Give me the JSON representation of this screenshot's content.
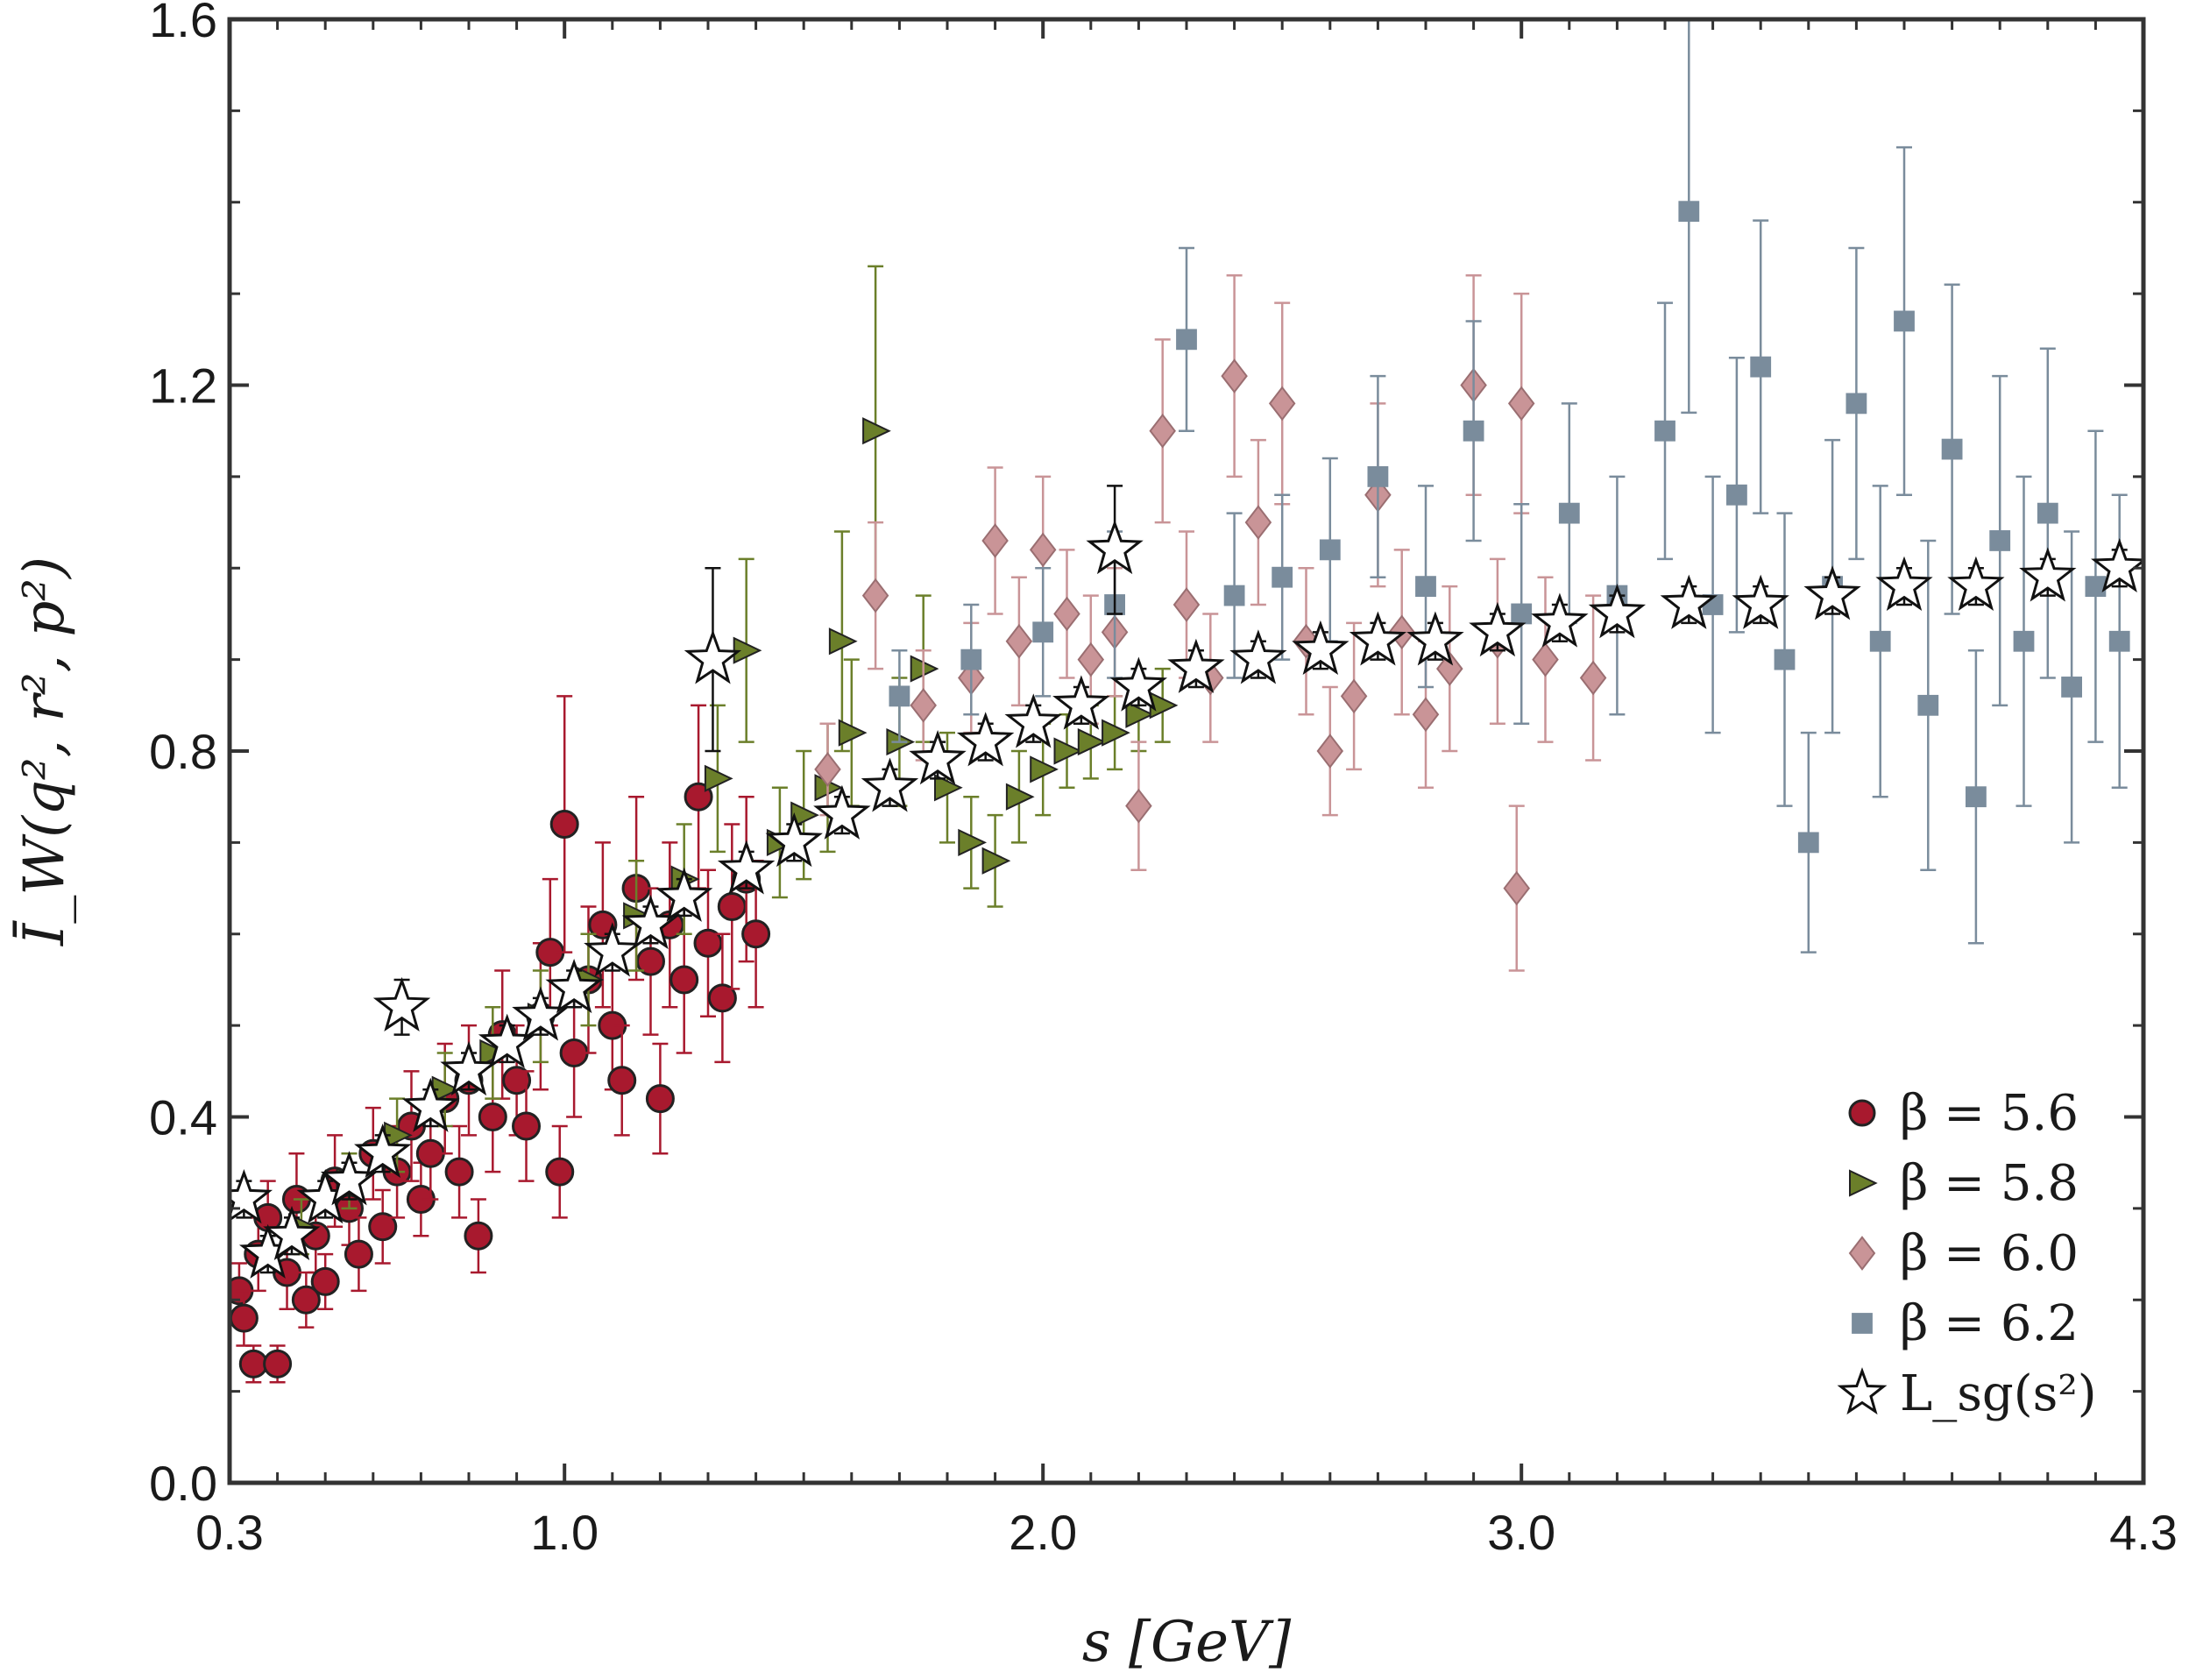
{
  "chart_data": {
    "type": "scatter",
    "title": "",
    "xlabel": "s [GeV]",
    "ylabel": "Ī_W(q², r², p²)",
    "xlim": [
      0.3,
      4.3
    ],
    "ylim": [
      0.0,
      1.6
    ],
    "x_ticks": [
      {
        "value": 0.3,
        "label": "0.3"
      },
      {
        "value": 1.0,
        "label": "1.0"
      },
      {
        "value": 2.0,
        "label": "2.0"
      },
      {
        "value": 3.0,
        "label": "3.0"
      },
      {
        "value": 4.3,
        "label": "4.3"
      }
    ],
    "y_ticks": [
      {
        "value": 0.0,
        "label": "0.0"
      },
      {
        "value": 0.4,
        "label": "0.4"
      },
      {
        "value": 0.8,
        "label": "0.8"
      },
      {
        "value": 1.2,
        "label": "1.2"
      },
      {
        "value": 1.6,
        "label": "1.6"
      }
    ],
    "grid": false,
    "legend_position": "bottom-right",
    "colors": {
      "beta56": "#a8192e",
      "beta58": "#6b7f2a",
      "beta60": "#c99497",
      "beta62": "#7a8c9c",
      "star": "#ffffff",
      "axis": "#333333"
    },
    "series": [
      {
        "name": "β = 5.6",
        "legend_label": "β = 5.6",
        "marker": "circle",
        "color_key": "beta56",
        "points": [
          {
            "x": 0.32,
            "y": 0.21,
            "err": 0.03
          },
          {
            "x": 0.33,
            "y": 0.18,
            "err": 0.03
          },
          {
            "x": 0.35,
            "y": 0.13,
            "err": 0.02
          },
          {
            "x": 0.36,
            "y": 0.25,
            "err": 0.04
          },
          {
            "x": 0.38,
            "y": 0.29,
            "err": 0.04
          },
          {
            "x": 0.4,
            "y": 0.13,
            "err": 0.02
          },
          {
            "x": 0.42,
            "y": 0.23,
            "err": 0.04
          },
          {
            "x": 0.44,
            "y": 0.31,
            "err": 0.05
          },
          {
            "x": 0.46,
            "y": 0.2,
            "err": 0.03
          },
          {
            "x": 0.48,
            "y": 0.27,
            "err": 0.04
          },
          {
            "x": 0.5,
            "y": 0.22,
            "err": 0.03
          },
          {
            "x": 0.52,
            "y": 0.33,
            "err": 0.05
          },
          {
            "x": 0.55,
            "y": 0.3,
            "err": 0.04
          },
          {
            "x": 0.57,
            "y": 0.25,
            "err": 0.04
          },
          {
            "x": 0.6,
            "y": 0.36,
            "err": 0.05
          },
          {
            "x": 0.62,
            "y": 0.28,
            "err": 0.04
          },
          {
            "x": 0.65,
            "y": 0.34,
            "err": 0.05
          },
          {
            "x": 0.68,
            "y": 0.39,
            "err": 0.06
          },
          {
            "x": 0.7,
            "y": 0.31,
            "err": 0.04
          },
          {
            "x": 0.72,
            "y": 0.36,
            "err": 0.05
          },
          {
            "x": 0.75,
            "y": 0.42,
            "err": 0.06
          },
          {
            "x": 0.78,
            "y": 0.34,
            "err": 0.05
          },
          {
            "x": 0.8,
            "y": 0.44,
            "err": 0.06
          },
          {
            "x": 0.82,
            "y": 0.27,
            "err": 0.04
          },
          {
            "x": 0.85,
            "y": 0.4,
            "err": 0.06
          },
          {
            "x": 0.87,
            "y": 0.49,
            "err": 0.07
          },
          {
            "x": 0.9,
            "y": 0.44,
            "err": 0.06
          },
          {
            "x": 0.92,
            "y": 0.39,
            "err": 0.06
          },
          {
            "x": 0.95,
            "y": 0.51,
            "err": 0.08
          },
          {
            "x": 0.97,
            "y": 0.58,
            "err": 0.08
          },
          {
            "x": 0.99,
            "y": 0.34,
            "err": 0.05
          },
          {
            "x": 1.0,
            "y": 0.72,
            "err": 0.14
          },
          {
            "x": 1.02,
            "y": 0.47,
            "err": 0.07
          },
          {
            "x": 1.05,
            "y": 0.55,
            "err": 0.08
          },
          {
            "x": 1.08,
            "y": 0.61,
            "err": 0.09
          },
          {
            "x": 1.1,
            "y": 0.5,
            "err": 0.07
          },
          {
            "x": 1.12,
            "y": 0.44,
            "err": 0.06
          },
          {
            "x": 1.15,
            "y": 0.65,
            "err": 0.1
          },
          {
            "x": 1.18,
            "y": 0.57,
            "err": 0.08
          },
          {
            "x": 1.2,
            "y": 0.42,
            "err": 0.06
          },
          {
            "x": 1.22,
            "y": 0.61,
            "err": 0.09
          },
          {
            "x": 1.25,
            "y": 0.55,
            "err": 0.08
          },
          {
            "x": 1.28,
            "y": 0.75,
            "err": 0.1
          },
          {
            "x": 1.3,
            "y": 0.59,
            "err": 0.08
          },
          {
            "x": 1.33,
            "y": 0.53,
            "err": 0.07
          },
          {
            "x": 1.35,
            "y": 0.63,
            "err": 0.09
          },
          {
            "x": 1.38,
            "y": 0.66,
            "err": 0.09
          },
          {
            "x": 1.4,
            "y": 0.6,
            "err": 0.08
          }
        ]
      },
      {
        "name": "β = 5.8",
        "legend_label": "β = 5.8",
        "marker": "triangle-right",
        "color_key": "beta58",
        "points": [
          {
            "x": 0.45,
            "y": 0.28,
            "err": 0.03
          },
          {
            "x": 0.55,
            "y": 0.33,
            "err": 0.03
          },
          {
            "x": 0.65,
            "y": 0.38,
            "err": 0.04
          },
          {
            "x": 0.75,
            "y": 0.43,
            "err": 0.04
          },
          {
            "x": 0.85,
            "y": 0.47,
            "err": 0.05
          },
          {
            "x": 0.95,
            "y": 0.51,
            "err": 0.05
          },
          {
            "x": 1.05,
            "y": 0.55,
            "err": 0.05
          },
          {
            "x": 1.15,
            "y": 0.62,
            "err": 0.06
          },
          {
            "x": 1.25,
            "y": 0.66,
            "err": 0.06
          },
          {
            "x": 1.32,
            "y": 0.77,
            "err": 0.08
          },
          {
            "x": 1.38,
            "y": 0.91,
            "err": 0.1
          },
          {
            "x": 1.45,
            "y": 0.7,
            "err": 0.06
          },
          {
            "x": 1.5,
            "y": 0.73,
            "err": 0.07
          },
          {
            "x": 1.55,
            "y": 0.76,
            "err": 0.07
          },
          {
            "x": 1.58,
            "y": 0.92,
            "err": 0.12
          },
          {
            "x": 1.6,
            "y": 0.82,
            "err": 0.08
          },
          {
            "x": 1.65,
            "y": 1.15,
            "err": 0.18
          },
          {
            "x": 1.7,
            "y": 0.81,
            "err": 0.07
          },
          {
            "x": 1.75,
            "y": 0.89,
            "err": 0.08
          },
          {
            "x": 1.8,
            "y": 0.76,
            "err": 0.06
          },
          {
            "x": 1.85,
            "y": 0.7,
            "err": 0.05
          },
          {
            "x": 1.9,
            "y": 0.68,
            "err": 0.05
          },
          {
            "x": 1.95,
            "y": 0.75,
            "err": 0.05
          },
          {
            "x": 2.0,
            "y": 0.78,
            "err": 0.05
          },
          {
            "x": 2.05,
            "y": 0.8,
            "err": 0.04
          },
          {
            "x": 2.1,
            "y": 0.81,
            "err": 0.04
          },
          {
            "x": 2.15,
            "y": 0.82,
            "err": 0.04
          },
          {
            "x": 2.2,
            "y": 0.84,
            "err": 0.04
          },
          {
            "x": 2.25,
            "y": 0.85,
            "err": 0.04
          }
        ]
      },
      {
        "name": "β = 6.0",
        "legend_label": "β = 6.0",
        "marker": "diamond",
        "color_key": "beta60",
        "points": [
          {
            "x": 1.55,
            "y": 0.78,
            "err": 0.05
          },
          {
            "x": 1.65,
            "y": 0.97,
            "err": 0.08
          },
          {
            "x": 1.75,
            "y": 0.85,
            "err": 0.06
          },
          {
            "x": 1.85,
            "y": 0.88,
            "err": 0.06
          },
          {
            "x": 1.9,
            "y": 1.03,
            "err": 0.08
          },
          {
            "x": 1.95,
            "y": 0.92,
            "err": 0.07
          },
          {
            "x": 2.0,
            "y": 1.02,
            "err": 0.08
          },
          {
            "x": 2.05,
            "y": 0.95,
            "err": 0.07
          },
          {
            "x": 2.1,
            "y": 0.9,
            "err": 0.07
          },
          {
            "x": 2.15,
            "y": 0.93,
            "err": 0.07
          },
          {
            "x": 2.2,
            "y": 0.74,
            "err": 0.07
          },
          {
            "x": 2.25,
            "y": 1.15,
            "err": 0.1
          },
          {
            "x": 2.3,
            "y": 0.96,
            "err": 0.08
          },
          {
            "x": 2.35,
            "y": 0.88,
            "err": 0.07
          },
          {
            "x": 2.4,
            "y": 1.21,
            "err": 0.11
          },
          {
            "x": 2.45,
            "y": 1.05,
            "err": 0.09
          },
          {
            "x": 2.5,
            "y": 1.18,
            "err": 0.11
          },
          {
            "x": 2.55,
            "y": 0.92,
            "err": 0.08
          },
          {
            "x": 2.6,
            "y": 0.8,
            "err": 0.07
          },
          {
            "x": 2.65,
            "y": 0.86,
            "err": 0.08
          },
          {
            "x": 2.7,
            "y": 1.08,
            "err": 0.1
          },
          {
            "x": 2.75,
            "y": 0.93,
            "err": 0.09
          },
          {
            "x": 2.8,
            "y": 0.84,
            "err": 0.08
          },
          {
            "x": 2.85,
            "y": 0.89,
            "err": 0.09
          },
          {
            "x": 2.9,
            "y": 1.2,
            "err": 0.12
          },
          {
            "x": 2.95,
            "y": 0.92,
            "err": 0.09
          },
          {
            "x": 3.0,
            "y": 1.18,
            "err": 0.12
          },
          {
            "x": 2.99,
            "y": 0.65,
            "err": 0.09
          },
          {
            "x": 3.05,
            "y": 0.9,
            "err": 0.09
          },
          {
            "x": 3.15,
            "y": 0.88,
            "err": 0.09
          }
        ]
      },
      {
        "name": "β = 6.2",
        "legend_label": "β = 6.2",
        "marker": "square",
        "color_key": "beta62",
        "points": [
          {
            "x": 1.7,
            "y": 0.86,
            "err": 0.05
          },
          {
            "x": 1.85,
            "y": 0.9,
            "err": 0.06
          },
          {
            "x": 2.0,
            "y": 0.93,
            "err": 0.07
          },
          {
            "x": 2.15,
            "y": 0.96,
            "err": 0.08
          },
          {
            "x": 2.3,
            "y": 1.25,
            "err": 0.1
          },
          {
            "x": 2.4,
            "y": 0.97,
            "err": 0.09
          },
          {
            "x": 2.5,
            "y": 0.99,
            "err": 0.09
          },
          {
            "x": 2.6,
            "y": 1.02,
            "err": 0.1
          },
          {
            "x": 2.7,
            "y": 1.1,
            "err": 0.11
          },
          {
            "x": 2.8,
            "y": 0.98,
            "err": 0.11
          },
          {
            "x": 2.9,
            "y": 1.15,
            "err": 0.12
          },
          {
            "x": 3.0,
            "y": 0.95,
            "err": 0.12
          },
          {
            "x": 3.1,
            "y": 1.06,
            "err": 0.12
          },
          {
            "x": 3.2,
            "y": 0.97,
            "err": 0.13
          },
          {
            "x": 3.3,
            "y": 1.15,
            "err": 0.14
          },
          {
            "x": 3.35,
            "y": 1.39,
            "err": 0.22
          },
          {
            "x": 3.4,
            "y": 0.96,
            "err": 0.14
          },
          {
            "x": 3.45,
            "y": 1.08,
            "err": 0.15
          },
          {
            "x": 3.5,
            "y": 1.22,
            "err": 0.16
          },
          {
            "x": 3.55,
            "y": 0.9,
            "err": 0.16
          },
          {
            "x": 3.6,
            "y": 0.7,
            "err": 0.12
          },
          {
            "x": 3.65,
            "y": 0.98,
            "err": 0.16
          },
          {
            "x": 3.7,
            "y": 1.18,
            "err": 0.17
          },
          {
            "x": 3.75,
            "y": 0.92,
            "err": 0.17
          },
          {
            "x": 3.8,
            "y": 1.27,
            "err": 0.19
          },
          {
            "x": 3.85,
            "y": 0.85,
            "err": 0.18
          },
          {
            "x": 3.9,
            "y": 1.13,
            "err": 0.18
          },
          {
            "x": 3.95,
            "y": 0.75,
            "err": 0.16
          },
          {
            "x": 4.0,
            "y": 1.03,
            "err": 0.18
          },
          {
            "x": 4.05,
            "y": 0.92,
            "err": 0.18
          },
          {
            "x": 4.1,
            "y": 1.06,
            "err": 0.18
          },
          {
            "x": 4.15,
            "y": 0.87,
            "err": 0.17
          },
          {
            "x": 4.2,
            "y": 0.98,
            "err": 0.17
          },
          {
            "x": 4.25,
            "y": 0.92,
            "err": 0.16
          }
        ]
      },
      {
        "name": "L_sg(s²)",
        "legend_label": "L_sg(s²)",
        "marker": "star",
        "color_key": "star",
        "points": [
          {
            "x": 0.33,
            "y": 0.31,
            "err": 0.02
          },
          {
            "x": 0.38,
            "y": 0.25,
            "err": 0.02
          },
          {
            "x": 0.43,
            "y": 0.27,
            "err": 0.02
          },
          {
            "x": 0.5,
            "y": 0.31,
            "err": 0.02
          },
          {
            "x": 0.55,
            "y": 0.33,
            "err": 0.02
          },
          {
            "x": 0.62,
            "y": 0.36,
            "err": 0.02
          },
          {
            "x": 0.66,
            "y": 0.52,
            "err": 0.03
          },
          {
            "x": 0.72,
            "y": 0.41,
            "err": 0.02
          },
          {
            "x": 0.8,
            "y": 0.45,
            "err": 0.02
          },
          {
            "x": 0.88,
            "y": 0.48,
            "err": 0.02
          },
          {
            "x": 0.95,
            "y": 0.51,
            "err": 0.02
          },
          {
            "x": 1.02,
            "y": 0.54,
            "err": 0.02
          },
          {
            "x": 1.1,
            "y": 0.58,
            "err": 0.02
          },
          {
            "x": 1.18,
            "y": 0.61,
            "err": 0.02
          },
          {
            "x": 1.25,
            "y": 0.64,
            "err": 0.02
          },
          {
            "x": 1.31,
            "y": 0.9,
            "err": 0.1
          },
          {
            "x": 1.38,
            "y": 0.67,
            "err": 0.02
          },
          {
            "x": 1.48,
            "y": 0.7,
            "err": 0.02
          },
          {
            "x": 1.58,
            "y": 0.73,
            "err": 0.02
          },
          {
            "x": 1.68,
            "y": 0.76,
            "err": 0.02
          },
          {
            "x": 1.78,
            "y": 0.79,
            "err": 0.02
          },
          {
            "x": 1.88,
            "y": 0.81,
            "err": 0.02
          },
          {
            "x": 1.98,
            "y": 0.83,
            "err": 0.02
          },
          {
            "x": 2.08,
            "y": 0.85,
            "err": 0.02
          },
          {
            "x": 2.15,
            "y": 1.02,
            "err": 0.07
          },
          {
            "x": 2.2,
            "y": 0.87,
            "err": 0.02
          },
          {
            "x": 2.32,
            "y": 0.89,
            "err": 0.02
          },
          {
            "x": 2.45,
            "y": 0.9,
            "err": 0.02
          },
          {
            "x": 2.58,
            "y": 0.91,
            "err": 0.02
          },
          {
            "x": 2.7,
            "y": 0.92,
            "err": 0.02
          },
          {
            "x": 2.82,
            "y": 0.92,
            "err": 0.02
          },
          {
            "x": 2.95,
            "y": 0.93,
            "err": 0.02
          },
          {
            "x": 3.08,
            "y": 0.94,
            "err": 0.02
          },
          {
            "x": 3.2,
            "y": 0.95,
            "err": 0.02
          },
          {
            "x": 3.35,
            "y": 0.96,
            "err": 0.02
          },
          {
            "x": 3.5,
            "y": 0.96,
            "err": 0.02
          },
          {
            "x": 3.65,
            "y": 0.97,
            "err": 0.02
          },
          {
            "x": 3.8,
            "y": 0.98,
            "err": 0.02
          },
          {
            "x": 3.95,
            "y": 0.98,
            "err": 0.02
          },
          {
            "x": 4.1,
            "y": 0.99,
            "err": 0.02
          },
          {
            "x": 4.25,
            "y": 1.0,
            "err": 0.02
          }
        ]
      }
    ]
  }
}
